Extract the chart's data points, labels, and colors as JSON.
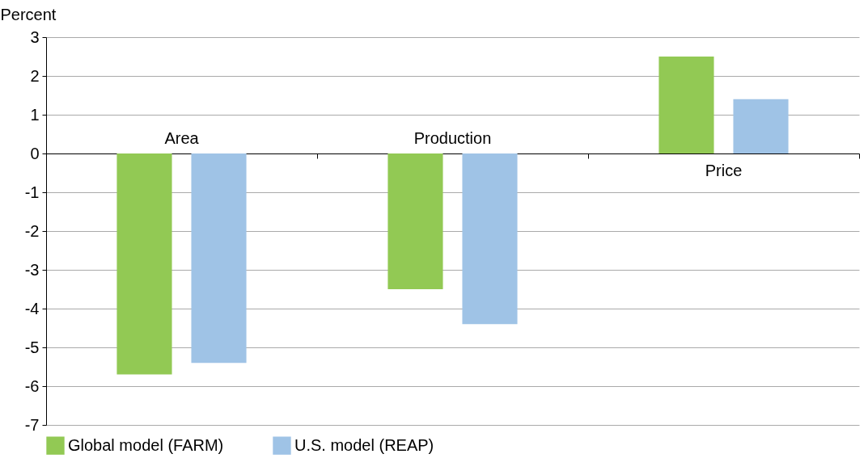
{
  "chart_data": {
    "type": "bar",
    "ylabel": "Percent",
    "categories": [
      "Area",
      "Production",
      "Price"
    ],
    "series": [
      {
        "name": "Global model (FARM)",
        "color": "#92c954",
        "values": [
          -5.7,
          -3.5,
          2.5
        ]
      },
      {
        "name": "U.S. model (REAP)",
        "color": "#9fc3e6",
        "values": [
          -5.4,
          -4.4,
          1.4
        ]
      }
    ],
    "ylim": [
      -7,
      3
    ],
    "yticks": [
      -7,
      -6,
      -5,
      -4,
      -3,
      -2,
      -1,
      0,
      1,
      2,
      3
    ],
    "grid": "y",
    "legend": "bottom"
  }
}
